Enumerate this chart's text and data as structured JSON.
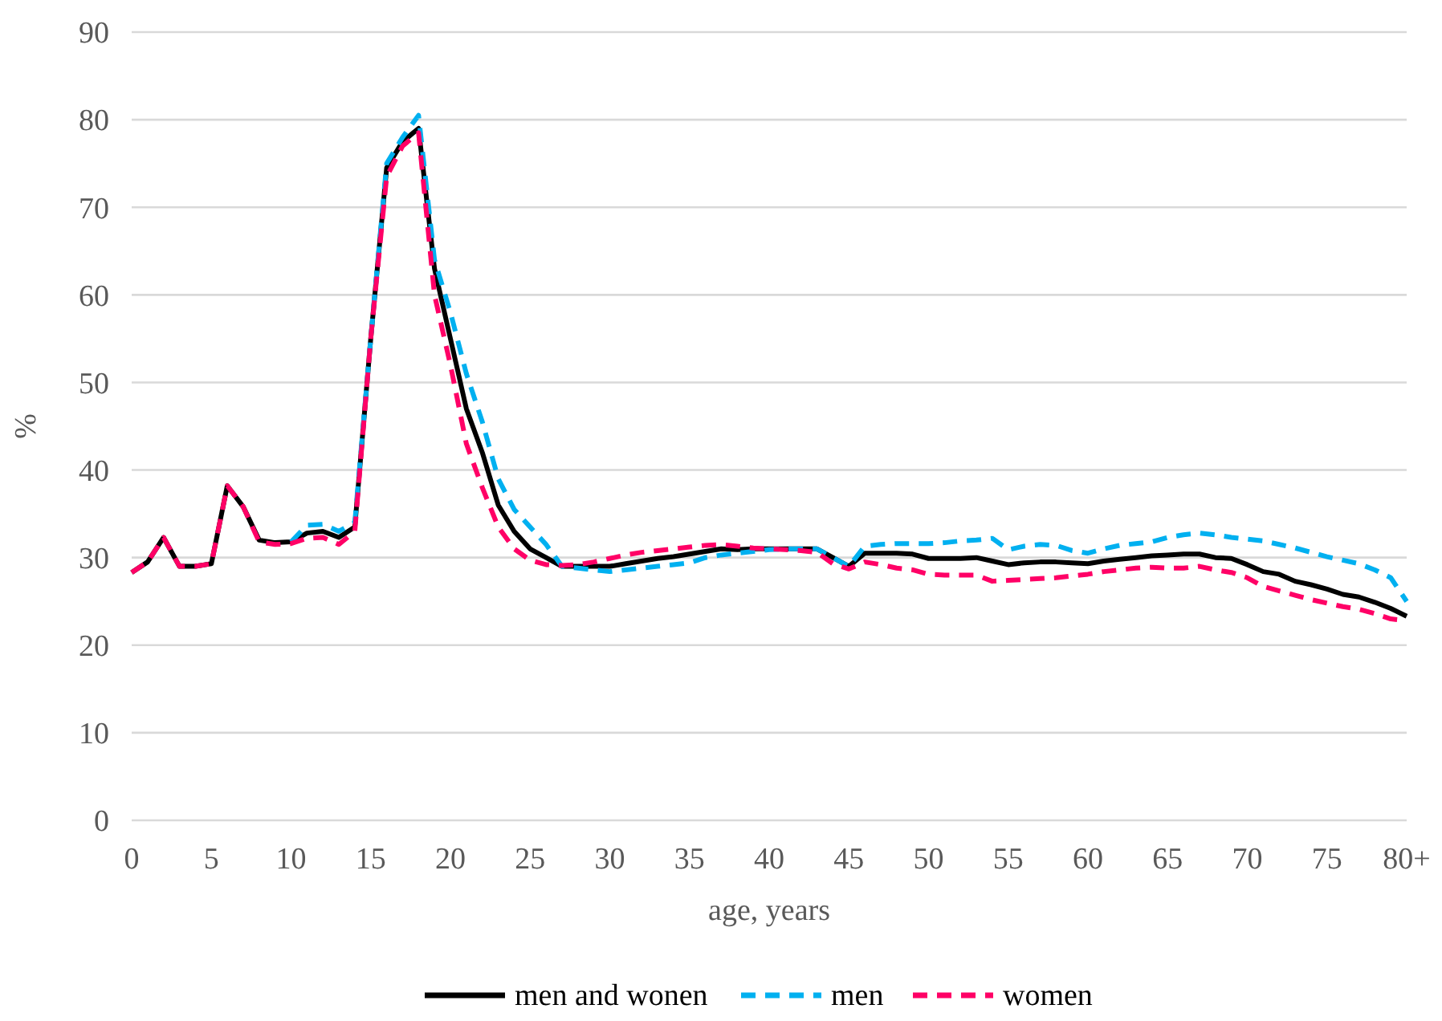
{
  "chart_data": {
    "type": "line",
    "xlabel": "age, years",
    "ylabel": "%",
    "x": [
      0,
      1,
      2,
      3,
      4,
      5,
      6,
      7,
      8,
      9,
      10,
      11,
      12,
      13,
      14,
      15,
      16,
      17,
      18,
      19,
      20,
      21,
      22,
      23,
      24,
      25,
      26,
      27,
      28,
      29,
      30,
      31,
      32,
      33,
      34,
      35,
      36,
      37,
      38,
      39,
      40,
      41,
      42,
      43,
      44,
      45,
      46,
      47,
      48,
      49,
      50,
      51,
      52,
      53,
      54,
      55,
      56,
      57,
      58,
      59,
      60,
      61,
      62,
      63,
      64,
      65,
      66,
      67,
      68,
      69,
      70,
      71,
      72,
      73,
      74,
      75,
      76,
      77,
      78,
      79,
      80
    ],
    "xlim": [
      0,
      80
    ],
    "xticks": [
      0,
      5,
      10,
      15,
      20,
      25,
      30,
      35,
      40,
      45,
      50,
      55,
      60,
      65,
      70,
      75,
      {
        "value": 80,
        "label": "80+"
      }
    ],
    "ylim": [
      0,
      90
    ],
    "yticks": [
      0,
      10,
      20,
      30,
      40,
      50,
      60,
      70,
      80,
      90
    ],
    "grid": "y",
    "legend": "bottom",
    "series": [
      {
        "name": "men and wonen",
        "color": "#000000",
        "line_style": "solid",
        "values": [
          28.3,
          29.5,
          32.3,
          29,
          29,
          29.3,
          38.2,
          35.8,
          32,
          31.7,
          31.8,
          32.8,
          33,
          32.3,
          33.5,
          55,
          74.5,
          77.5,
          79,
          63,
          55,
          47,
          42,
          36,
          33,
          31,
          30,
          29,
          29,
          29,
          29,
          29.3,
          29.6,
          29.9,
          30.1,
          30.4,
          30.7,
          31,
          30.9,
          31,
          31,
          31,
          31,
          31,
          30,
          29,
          30.5,
          30.5,
          30.5,
          30.4,
          29.9,
          29.9,
          29.9,
          30,
          29.6,
          29.2,
          29.4,
          29.5,
          29.5,
          29.4,
          29.3,
          29.6,
          29.8,
          30,
          30.2,
          30.3,
          30.4,
          30.4,
          30,
          29.9,
          29.2,
          28.4,
          28.1,
          27.3,
          26.9,
          26.4,
          25.8,
          25.5,
          24.9,
          24.2,
          23.3
        ]
      },
      {
        "name": "men",
        "color": "#00b0f0",
        "line_style": "dashed",
        "values": [
          null,
          null,
          null,
          null,
          null,
          null,
          null,
          null,
          null,
          null,
          31.8,
          33.7,
          33.8,
          33,
          34,
          55,
          75,
          78,
          80.5,
          64,
          58,
          51,
          45.5,
          39,
          35.5,
          33.5,
          31.5,
          29,
          28.8,
          28.6,
          28.4,
          28.6,
          28.8,
          29,
          29.2,
          29.4,
          30,
          30.3,
          30.5,
          30.7,
          30.9,
          31,
          31,
          31,
          30,
          29,
          31.3,
          31.5,
          31.6,
          31.6,
          31.6,
          31.7,
          31.9,
          32,
          32.2,
          30.9,
          31.3,
          31.5,
          31.4,
          30.8,
          30.5,
          31,
          31.4,
          31.6,
          31.8,
          32.3,
          32.6,
          32.8,
          32.6,
          32.3,
          32.1,
          31.9,
          31.5,
          31.1,
          30.6,
          30.1,
          29.7,
          29.3,
          28.6,
          27.7,
          25
        ]
      },
      {
        "name": "women",
        "color": "#ff0066",
        "line_style": "dashed",
        "values": [
          28.3,
          29.5,
          32.3,
          29,
          29,
          29.3,
          38.2,
          35.8,
          31.8,
          31.5,
          31.6,
          32.2,
          32.3,
          31.5,
          33,
          55,
          73.5,
          77,
          78.5,
          60,
          52,
          43,
          38,
          33.5,
          31,
          29.7,
          29.2,
          29.1,
          29.2,
          29.5,
          29.9,
          30.3,
          30.6,
          30.8,
          31,
          31.2,
          31.4,
          31.5,
          31.3,
          31.1,
          31,
          30.9,
          30.8,
          30.6,
          29.3,
          28.7,
          29.5,
          29.2,
          28.8,
          28.6,
          28.1,
          28,
          28,
          28,
          27.3,
          27.4,
          27.5,
          27.6,
          27.7,
          27.9,
          28.1,
          28.4,
          28.6,
          28.8,
          28.9,
          28.8,
          28.8,
          29,
          28.6,
          28.3,
          27.7,
          26.7,
          26.2,
          25.7,
          25.2,
          24.8,
          24.4,
          24.1,
          23.6,
          23,
          22.8
        ]
      }
    ]
  }
}
